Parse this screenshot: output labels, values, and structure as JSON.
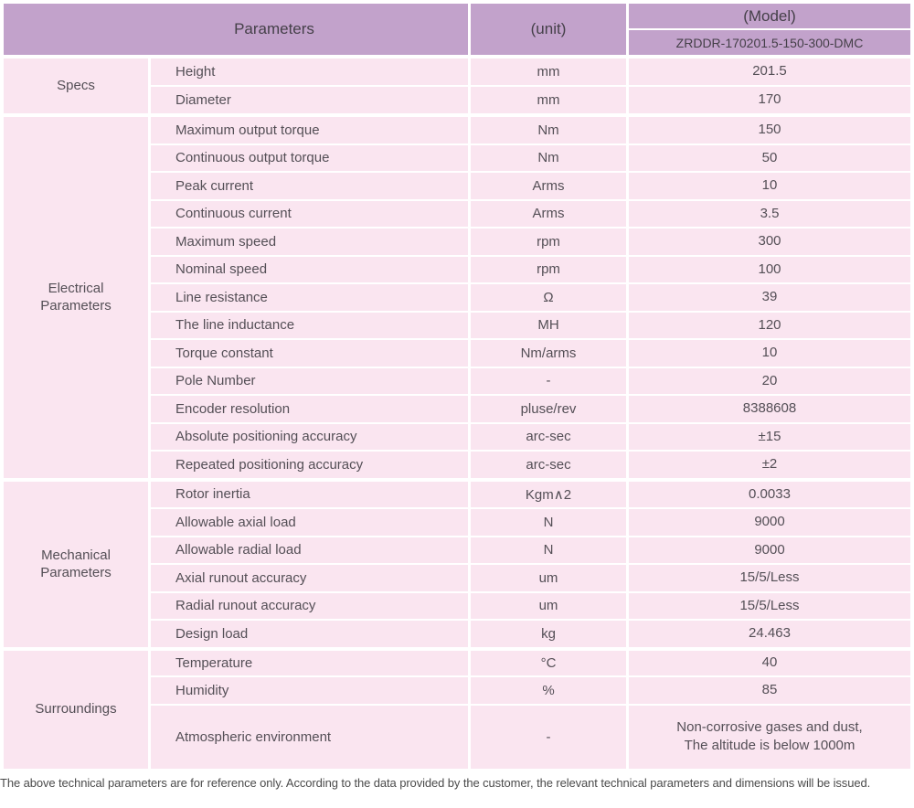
{
  "header": {
    "parameters_label": "Parameters",
    "unit_label": "(unit)",
    "model_label": "(Model)",
    "model_value": "ZRDDR-170201.5-150-300-DMC"
  },
  "sections": [
    {
      "name": "Specs",
      "rows": [
        {
          "param": "Height",
          "unit": "mm",
          "value": "201.5"
        },
        {
          "param": "Diameter",
          "unit": "mm",
          "value": "170"
        }
      ]
    },
    {
      "name": "Electrical Parameters",
      "rows": [
        {
          "param": "Maximum output torque",
          "unit": "Nm",
          "value": "150"
        },
        {
          "param": "Continuous output torque",
          "unit": "Nm",
          "value": "50"
        },
        {
          "param": "Peak current",
          "unit": "Arms",
          "value": "10"
        },
        {
          "param": "Continuous current",
          "unit": "Arms",
          "value": "3.5"
        },
        {
          "param": "Maximum speed",
          "unit": "rpm",
          "value": "300"
        },
        {
          "param": "Nominal speed",
          "unit": "rpm",
          "value": "100"
        },
        {
          "param": "Line resistance",
          "unit": "Ω",
          "value": "39"
        },
        {
          "param": "The line inductance",
          "unit": "MH",
          "value": "120"
        },
        {
          "param": "Torque constant",
          "unit": "Nm/arms",
          "value": "10"
        },
        {
          "param": "Pole Number",
          "unit": "-",
          "value": "20"
        },
        {
          "param": "Encoder resolution",
          "unit": "pluse/rev",
          "value": "8388608"
        },
        {
          "param": "Absolute positioning accuracy",
          "unit": "arc-sec",
          "value": "±15"
        },
        {
          "param": "Repeated positioning accuracy",
          "unit": "arc-sec",
          "value": "±2"
        }
      ]
    },
    {
      "name": "Mechanical Parameters",
      "rows": [
        {
          "param": "Rotor inertia",
          "unit": "Kgm∧2",
          "value": "0.0033"
        },
        {
          "param": "Allowable axial load",
          "unit": "N",
          "value": "9000"
        },
        {
          "param": "Allowable radial load",
          "unit": "N",
          "value": "9000"
        },
        {
          "param": "Axial runout accuracy",
          "unit": "um",
          "value": "15/5/Less"
        },
        {
          "param": "Radial runout accuracy",
          "unit": "um",
          "value": "15/5/Less"
        },
        {
          "param": "Design load",
          "unit": "kg",
          "value": "24.463"
        }
      ]
    },
    {
      "name": "Surroundings",
      "rows": [
        {
          "param": "Temperature",
          "unit": "°C",
          "value": "40"
        },
        {
          "param": "Humidity",
          "unit": "%",
          "value": "85"
        },
        {
          "param": "Atmospheric environment",
          "unit": "-",
          "value": "Non-corrosive gases and dust,",
          "value2": "The altitude is below 1000m"
        }
      ]
    }
  ],
  "footnote": "The above technical parameters are for reference only. According to the data provided by the customer, the relevant technical parameters and dimensions will be issued.",
  "colors": {
    "header_bg": "#c2a2cb",
    "row_bg": "#fae5f0",
    "separator": "#ffffff",
    "text": "#544f56"
  }
}
